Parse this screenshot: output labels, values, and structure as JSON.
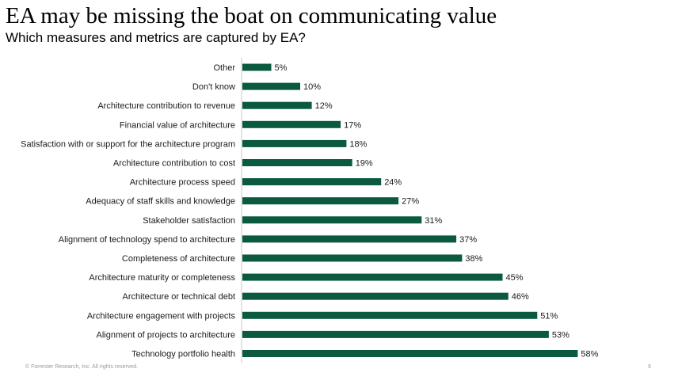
{
  "slide": {
    "title": "EA may be missing the boat on communicating value",
    "subtitle": "Which measures and metrics are captured by EA?",
    "footer": "© Forrester Research, Inc. All rights reserved.",
    "page_number": "9"
  },
  "colors": {
    "bar": "#0b5a3f",
    "axis": "#c8c8c8"
  },
  "chart_data": {
    "type": "bar",
    "orientation": "horizontal",
    "categories": [
      "Other",
      "Don't know",
      "Architecture contribution to revenue",
      "Financial value of architecture",
      "Satisfaction with or support for the architecture program",
      "Architecture contribution to cost",
      "Architecture process speed",
      "Adequacy of staff skills and knowledge",
      "Stakeholder satisfaction",
      "Alignment of technology spend to architecture",
      "Completeness of architecture",
      "Architecture maturity or completeness",
      "Architecture or technical debt",
      "Architecture engagement with projects",
      "Alignment of projects to architecture",
      "Technology portfolio health"
    ],
    "values": [
      5,
      10,
      12,
      17,
      18,
      19,
      24,
      27,
      31,
      37,
      38,
      45,
      46,
      51,
      53,
      58
    ],
    "value_labels": [
      "5%",
      "10%",
      "12%",
      "17%",
      "18%",
      "19%",
      "24%",
      "27%",
      "31%",
      "37%",
      "38%",
      "45%",
      "46%",
      "51%",
      "53%",
      "58%"
    ],
    "xlim": [
      0,
      100
    ],
    "grid": false,
    "legend": "none"
  }
}
